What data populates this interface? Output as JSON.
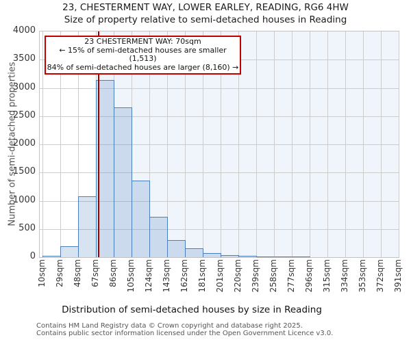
{
  "title": {
    "line1": "23, CHESTERMENT WAY, LOWER EARLEY, READING, RG6 4HW",
    "line2": "Size of property relative to semi-detached houses in Reading"
  },
  "annotation": {
    "line1": "23 CHESTERMENT WAY: 70sqm",
    "line2": "← 15% of semi-detached houses are smaller (1,513)",
    "line3": "84% of semi-detached houses are larger (8,160) →"
  },
  "footer": {
    "line1": "Contains HM Land Registry data © Crown copyright and database right 2025.",
    "line2": "Contains public sector information licensed under the Open Government Licence v3.0."
  },
  "chart_data": {
    "type": "bar",
    "title": "23, CHESTERMENT WAY, LOWER EARLEY, READING, RG6 4HW",
    "subtitle": "Size of property relative to semi-detached houses in Reading",
    "xlabel": "Distribution of semi-detached houses by size in Reading",
    "ylabel": "Number of semi-detached properties",
    "ylim": [
      0,
      4000
    ],
    "ytick_step": 500,
    "grid": true,
    "tick_labels": [
      "10sqm",
      "29sqm",
      "48sqm",
      "67sqm",
      "86sqm",
      "105sqm",
      "124sqm",
      "143sqm",
      "162sqm",
      "181sqm",
      "201sqm",
      "220sqm",
      "239sqm",
      "258sqm",
      "277sqm",
      "296sqm",
      "315sqm",
      "334sqm",
      "353sqm",
      "372sqm",
      "391sqm"
    ],
    "bin_edges_sqm": [
      10,
      29,
      48,
      67,
      86,
      105,
      124,
      143,
      162,
      181,
      201,
      220,
      239,
      258,
      277,
      296,
      315,
      334,
      353,
      372,
      391
    ],
    "values": [
      20,
      190,
      1080,
      3145,
      2650,
      1360,
      720,
      300,
      160,
      70,
      40,
      25,
      15,
      10,
      8,
      0,
      0,
      0,
      0,
      0
    ],
    "marker": {
      "sqm": 70,
      "smaller_count": "1,513",
      "smaller_pct": "15%",
      "larger_count": "8,160",
      "larger_pct": "84%"
    },
    "colors": {
      "bar_fill": "rgba(74,126,188,0.22)",
      "bar_border": "#4a7ebc",
      "marker_line": "#a00000",
      "callout_border": "#c00000",
      "shade": "#f0f4fb",
      "gridline": "#cccccc"
    }
  }
}
